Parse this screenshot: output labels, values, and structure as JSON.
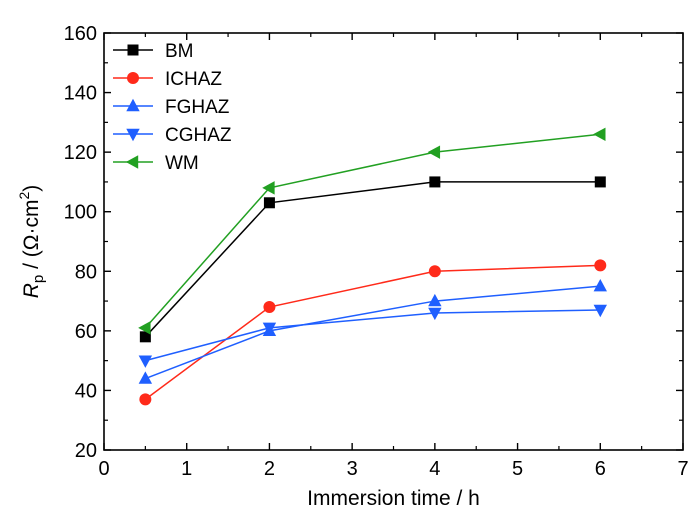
{
  "chart_data": {
    "type": "line",
    "title": "",
    "xlabel": "Immersion time / h",
    "ylabel": {
      "symbol": "R",
      "subscript": "p",
      "unit_prefix": " / (Ω·cm",
      "unit_power": "2",
      "unit_suffix": ")"
    },
    "xlim": [
      0,
      7
    ],
    "ylim": [
      20,
      160
    ],
    "xticks": [
      "0",
      "1",
      "2",
      "3",
      "4",
      "5",
      "6",
      "7"
    ],
    "yticks": [
      "20",
      "40",
      "60",
      "80",
      "100",
      "120",
      "140",
      "160"
    ],
    "grid": false,
    "legend_position": "top-left",
    "x": [
      0.5,
      2,
      4,
      6
    ],
    "series": [
      {
        "name": "BM",
        "values": [
          58,
          103,
          110,
          110
        ],
        "color": "#000000",
        "marker": "square"
      },
      {
        "name": "ICHAZ",
        "values": [
          37,
          68,
          80,
          82
        ],
        "color": "#ff2a1a",
        "marker": "circle"
      },
      {
        "name": "FGHAZ",
        "values": [
          44,
          60,
          70,
          75
        ],
        "color": "#1f5fff",
        "marker": "triangle-up"
      },
      {
        "name": "CGHAZ",
        "values": [
          50,
          61,
          66,
          67
        ],
        "color": "#1f5fff",
        "marker": "triangle-down"
      },
      {
        "name": "WM",
        "values": [
          61,
          108,
          120,
          126
        ],
        "color": "#22a022",
        "marker": "triangle-left"
      }
    ]
  }
}
